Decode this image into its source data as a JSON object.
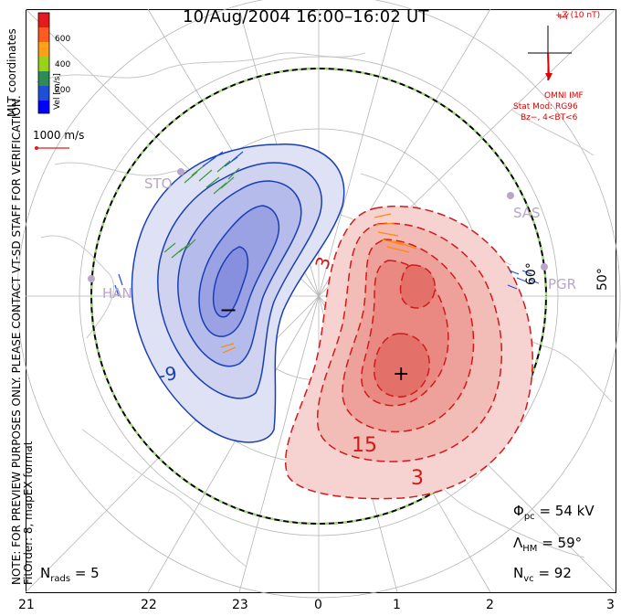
{
  "title": "10/Aug/2004  16:00–16:02  UT",
  "note_line1": "NOTE: FOR PREVIEW PURPOSES ONLY. PLEASE CONTACT VT-SD STAFF FOR VERIFICATION.",
  "note_line2": "FitOrder: 8, mapEX format",
  "coord_label": "MLT coordinates",
  "colorbar": {
    "title": "Vel [m/s]",
    "ticks": [
      "600",
      "400",
      "200"
    ],
    "colors": [
      "#e41a1c",
      "#ff8c00",
      "#ffd700",
      "#7fd11b",
      "#2e8b57",
      "#1f4fd6",
      "#0000ff"
    ]
  },
  "vector_scale": "1000 m/s",
  "imf": {
    "bz_label": "+Z (10 nT)",
    "by_label": "+Y",
    "source": "OMNI IMF",
    "model": "Stat Mod: RG96",
    "condition": "Bz−, 4<BT<6"
  },
  "stats": {
    "phi_symbol": "Φ",
    "phi_sub": "pc",
    "phi_value": "= 54 kV",
    "lambda_symbol": "Λ",
    "lambda_sub": "HM",
    "lambda_value": "= 59°",
    "nvc_symbol": "N",
    "nvc_sub": "vc",
    "nvc_value": "= 92",
    "nrads_symbol": "N",
    "nrads_sub": "rads",
    "nrads_value": "= 5"
  },
  "mlt_ticks": [
    "21",
    "22",
    "23",
    "0",
    "1",
    "2",
    "3"
  ],
  "lat_labels": [
    "60°",
    "50°"
  ],
  "radar_labels": [
    "STO",
    "HAN",
    "SAS",
    "PGR"
  ],
  "extrema_markers": {
    "min": "−",
    "max": "+"
  },
  "chart_data": {
    "type": "contour",
    "coordinates": "MLT",
    "colatitude_boundary_deg": 59,
    "cross_polar_cap_potential_kV": 54,
    "negative_cell_contour_labels": [
      "-9"
    ],
    "positive_cell_contour_labels": [
      "3",
      "15",
      "3"
    ],
    "negative_cell_color": "#5561d6",
    "positive_cell_color": "#e23a3a"
  }
}
